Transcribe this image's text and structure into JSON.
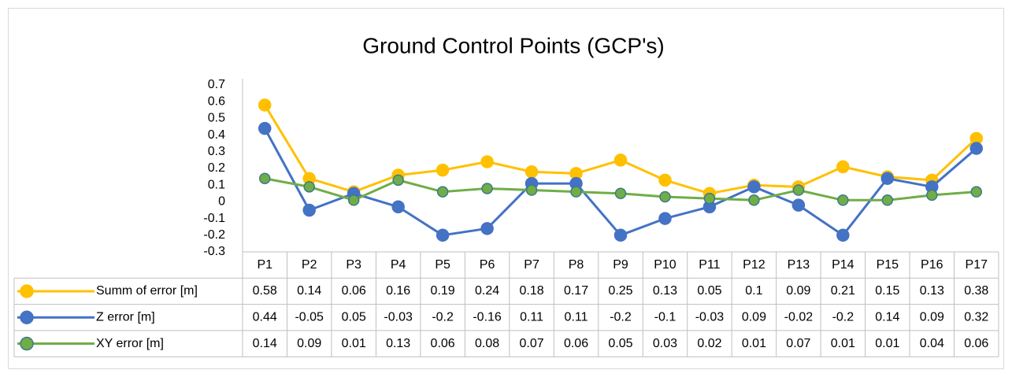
{
  "chart_data": {
    "type": "line",
    "title": "Ground Control Points (GCP's)",
    "categories": [
      "P1",
      "P2",
      "P3",
      "P4",
      "P5",
      "P6",
      "P7",
      "P8",
      "P9",
      "P10",
      "P11",
      "P12",
      "P13",
      "P14",
      "P15",
      "P16",
      "P17"
    ],
    "series": [
      {
        "name": "Summ of error [m]",
        "color": "#ffc000",
        "values": [
          0.58,
          0.14,
          0.06,
          0.16,
          0.19,
          0.24,
          0.18,
          0.17,
          0.25,
          0.13,
          0.05,
          0.1,
          0.09,
          0.21,
          0.15,
          0.13,
          0.38
        ]
      },
      {
        "name": "Z error [m]",
        "color": "#4472c4",
        "values": [
          0.44,
          -0.05,
          0.05,
          -0.03,
          -0.2,
          -0.16,
          0.11,
          0.11,
          -0.2,
          -0.1,
          -0.03,
          0.09,
          -0.02,
          -0.2,
          0.14,
          0.09,
          0.32
        ]
      },
      {
        "name": "XY error [m]",
        "color": "#70ad47",
        "values": [
          0.14,
          0.09,
          0.01,
          0.13,
          0.06,
          0.08,
          0.07,
          0.06,
          0.05,
          0.03,
          0.02,
          0.01,
          0.07,
          0.01,
          0.01,
          0.04,
          0.06
        ]
      }
    ],
    "ylim": [
      -0.3,
      0.7
    ],
    "yticks": [
      0.7,
      0.6,
      0.5,
      0.4,
      0.3,
      0.2,
      0.1,
      0,
      -0.1,
      -0.2,
      -0.3
    ],
    "grid": false
  }
}
